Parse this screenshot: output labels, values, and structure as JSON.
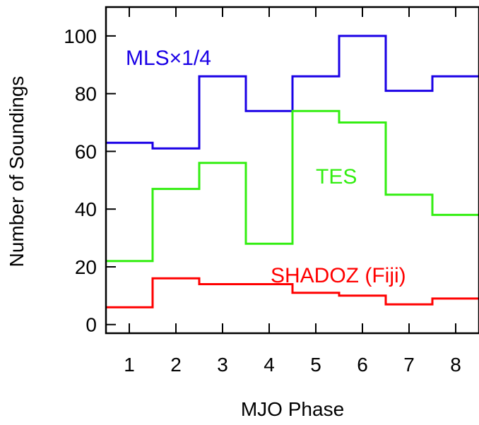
{
  "chart_data": {
    "type": "line",
    "step": true,
    "xlabel": "MJO Phase",
    "ylabel": "Number of Soundings",
    "xlim": [
      0.5,
      8.5
    ],
    "ylim": [
      -3,
      110
    ],
    "x_ticks": [
      1,
      2,
      3,
      4,
      5,
      6,
      7,
      8
    ],
    "y_ticks": [
      0,
      20,
      40,
      60,
      80,
      100
    ],
    "grid": false,
    "categories": [
      1,
      2,
      3,
      4,
      5,
      6,
      7,
      8
    ],
    "series": [
      {
        "name": "MLS×1/4",
        "color": "#1a00e6",
        "values": [
          63,
          61,
          86,
          74,
          86,
          100,
          81,
          86
        ]
      },
      {
        "name": "TES",
        "color": "#33ee11",
        "values": [
          22,
          47,
          56,
          28,
          74,
          70,
          45,
          38
        ]
      },
      {
        "name": "SHADOZ (Fiji)",
        "color": "#ff0000",
        "values": [
          6,
          16,
          14,
          14,
          11,
          10,
          7,
          9
        ]
      }
    ]
  }
}
